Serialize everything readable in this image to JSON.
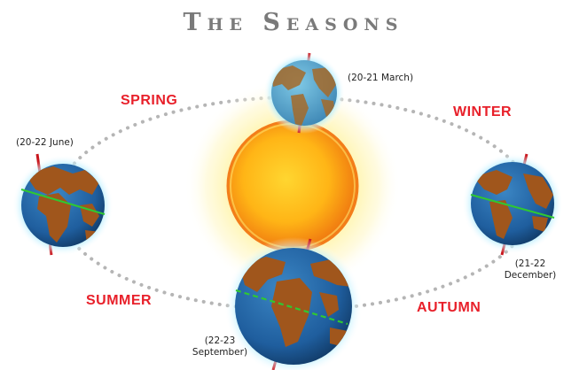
{
  "title": "The Seasons",
  "seasons": {
    "spring": "SPRING",
    "winter": "WINTER",
    "summer": "SUMMER",
    "autumn": "AUTUMN"
  },
  "dates": {
    "march": "(20-21 March)",
    "june": "(20-22 June)",
    "december_line1": "(21-22",
    "december_line2": "December)",
    "september_line1": "(22-23",
    "september_line2": "September)"
  },
  "colors": {
    "season_text": "#e8202a",
    "title_text": "#7a7a7a",
    "orbit": "#b5b5b5",
    "ocean": "#1f5e9e",
    "land": "#a0561c",
    "axis": "#c8161d",
    "equator": "#2fc832"
  }
}
